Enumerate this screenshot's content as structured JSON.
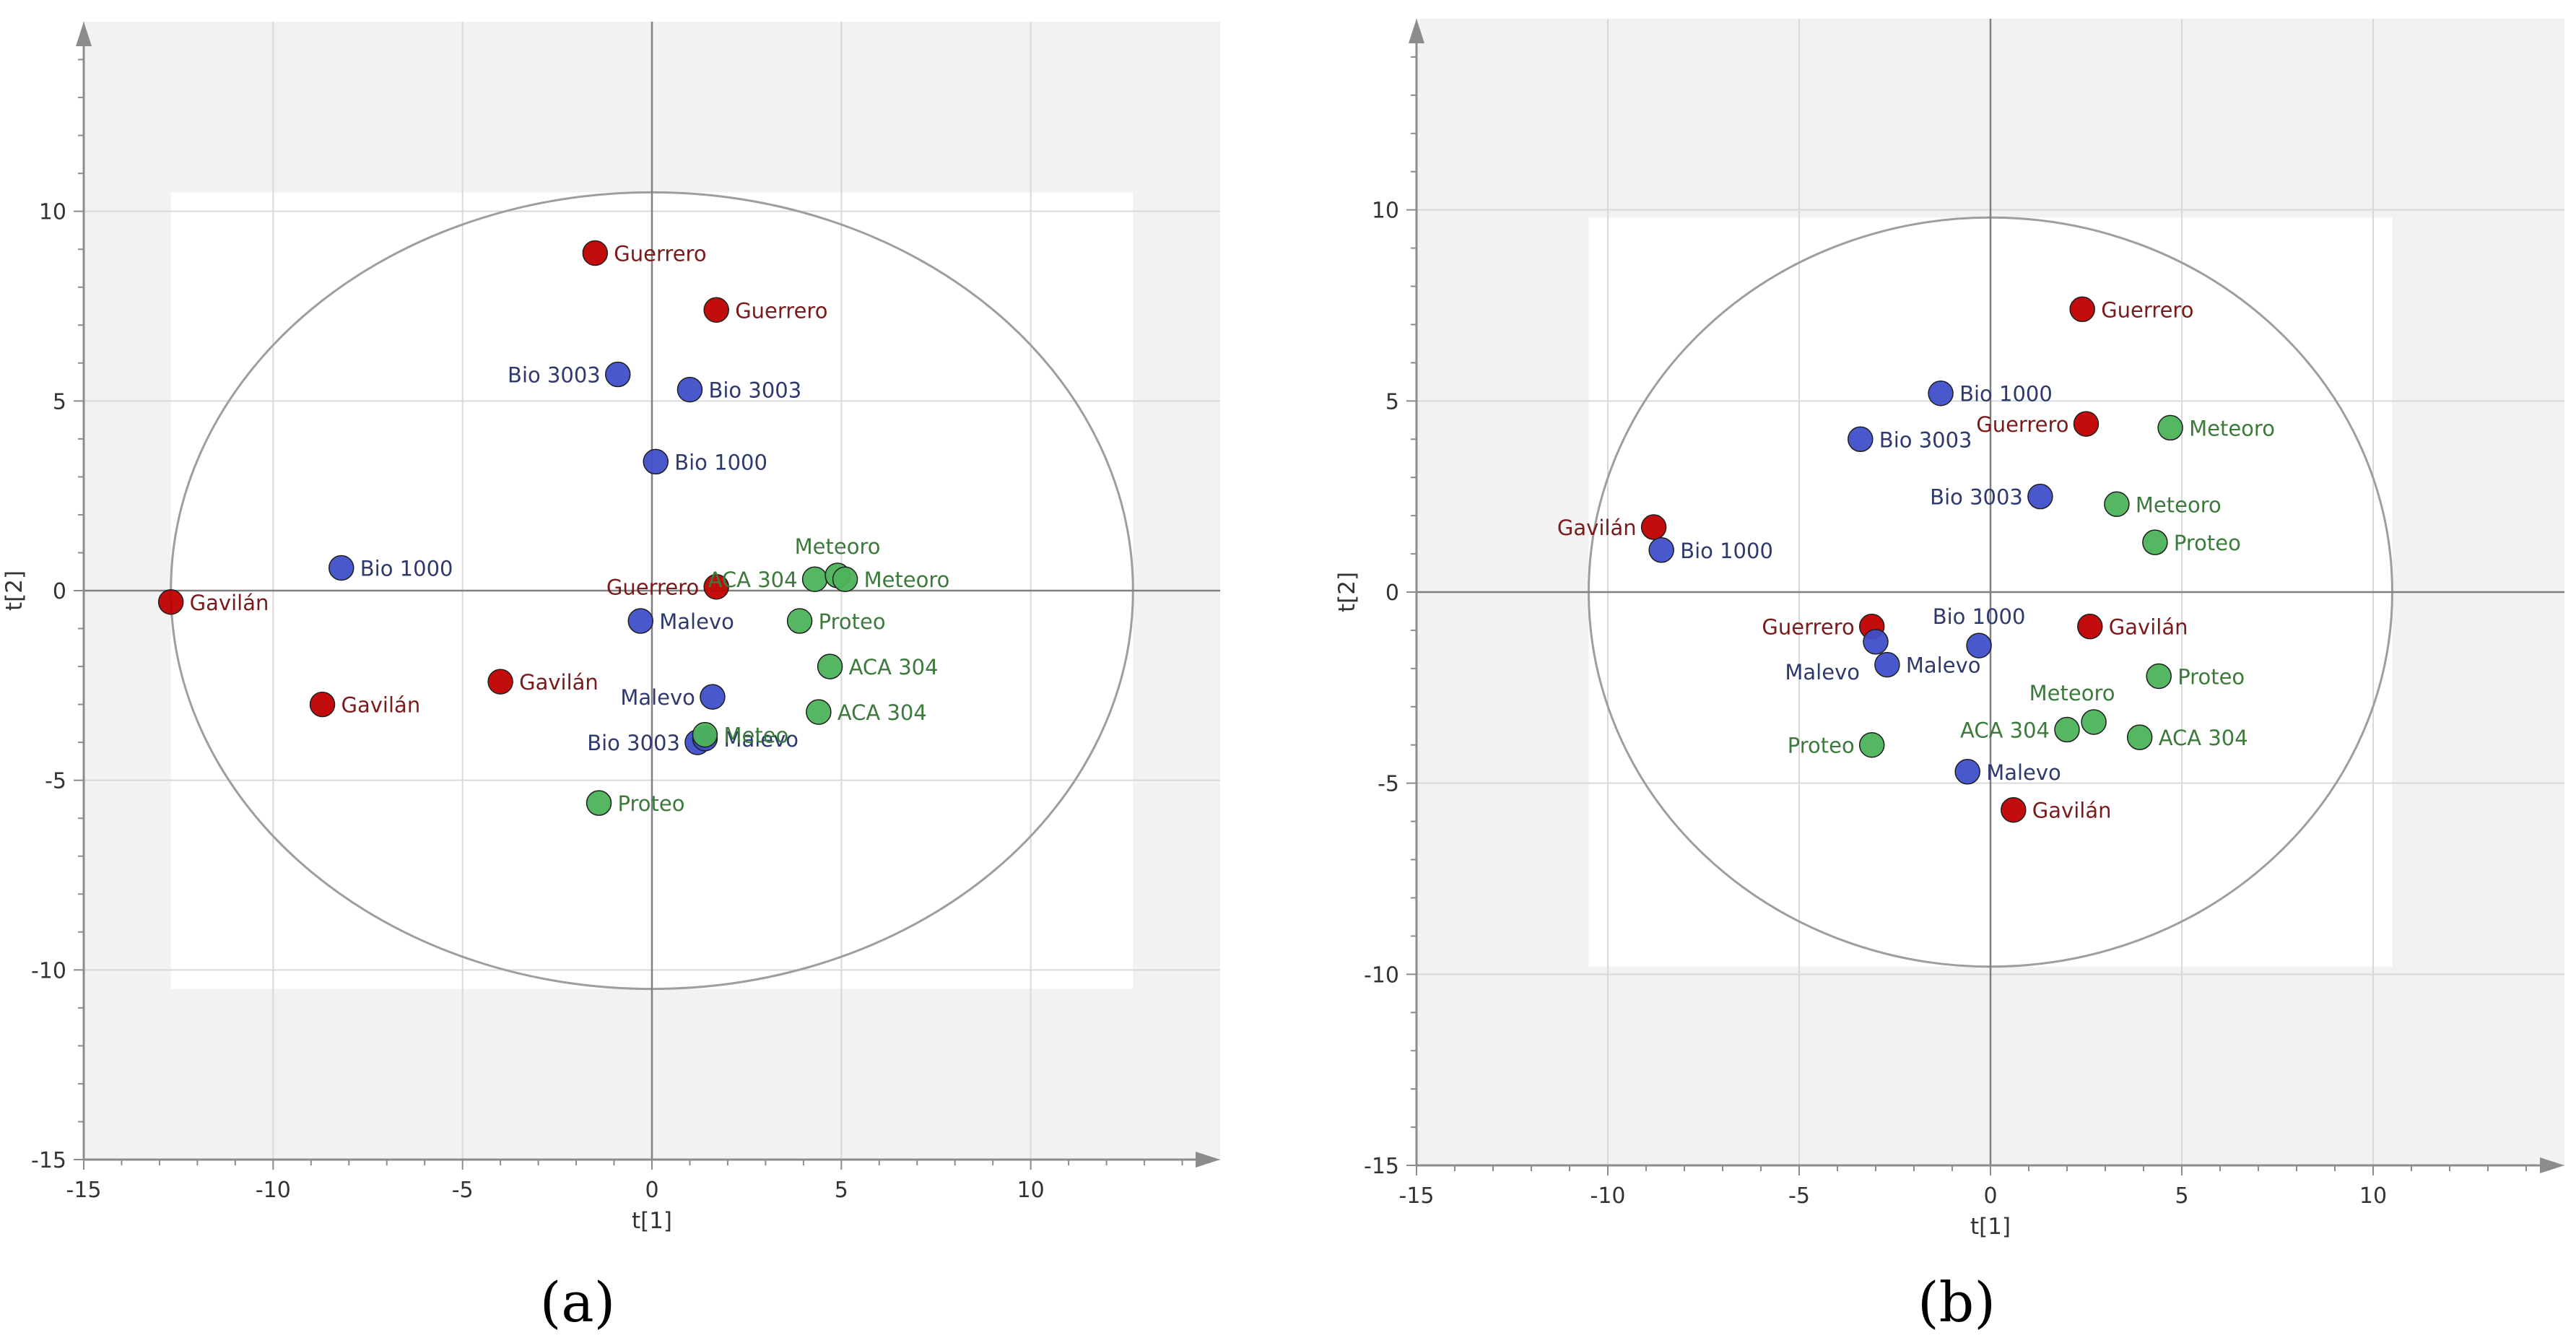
{
  "colors": {
    "red": "#C00000",
    "blue": "#3F4FC9",
    "green": "#4CB35A",
    "red_text": "#7A1A1A",
    "blue_text": "#2E3A6E",
    "green_text": "#3C7A3C"
  },
  "panels": [
    {
      "label": "(a)"
    },
    {
      "label": "(b)"
    }
  ],
  "chart_data": [
    {
      "type": "scatter",
      "panel": "(a)",
      "xlabel": "t[1]",
      "ylabel": "t[2]",
      "xlim": [
        -15,
        15
      ],
      "ylim": [
        -15,
        15
      ],
      "xticks": [
        -15,
        -10,
        -5,
        0,
        5,
        10
      ],
      "yticks": [
        -15,
        -10,
        -5,
        0,
        5,
        10
      ],
      "ellipse": {
        "rx": 12.7,
        "ry": 10.5
      },
      "points": [
        {
          "x": -1.5,
          "y": 8.9,
          "label": "Guerrero",
          "color": "red",
          "anchor": "right"
        },
        {
          "x": 1.7,
          "y": 7.4,
          "label": "Guerrero",
          "color": "red",
          "anchor": "right"
        },
        {
          "x": 1.7,
          "y": 0.1,
          "label": "Guerrero",
          "color": "red",
          "anchor": "left"
        },
        {
          "x": -12.7,
          "y": -0.3,
          "label": "Gavilán",
          "color": "red",
          "anchor": "right"
        },
        {
          "x": -8.7,
          "y": -3.0,
          "label": "Gavilán",
          "color": "red",
          "anchor": "right"
        },
        {
          "x": -4.0,
          "y": -2.4,
          "label": "Gavilán",
          "color": "red",
          "anchor": "right"
        },
        {
          "x": -0.9,
          "y": 5.7,
          "label": "Bio 3003",
          "color": "blue",
          "anchor": "left"
        },
        {
          "x": 1.0,
          "y": 5.3,
          "label": "Bio 3003",
          "color": "blue",
          "anchor": "right"
        },
        {
          "x": 0.1,
          "y": 3.4,
          "label": "Bio 1000",
          "color": "blue",
          "anchor": "right"
        },
        {
          "x": -8.2,
          "y": 0.6,
          "label": "Bio 1000",
          "color": "blue",
          "anchor": "right"
        },
        {
          "x": -0.3,
          "y": -0.8,
          "label": "Malevo",
          "color": "blue",
          "anchor": "right"
        },
        {
          "x": 1.6,
          "y": -2.8,
          "label": "Malevo",
          "color": "blue",
          "anchor": "left"
        },
        {
          "x": 1.2,
          "y": -4.0,
          "label": "Bio 3003",
          "color": "blue",
          "anchor": "left"
        },
        {
          "x": 1.4,
          "y": -3.9,
          "label": "Malevo",
          "color": "blue",
          "anchor": "right"
        },
        {
          "x": 4.3,
          "y": 0.3,
          "label": "ACA 304",
          "color": "green",
          "anchor": "left"
        },
        {
          "x": 4.9,
          "y": 0.4,
          "label": "Meteoro",
          "color": "green",
          "anchor": "above"
        },
        {
          "x": 5.1,
          "y": 0.3,
          "label": "Meteoro",
          "color": "green",
          "anchor": "right"
        },
        {
          "x": 3.9,
          "y": -0.8,
          "label": "Proteo",
          "color": "green",
          "anchor": "right"
        },
        {
          "x": 4.7,
          "y": -2.0,
          "label": "ACA 304",
          "color": "green",
          "anchor": "right"
        },
        {
          "x": 4.4,
          "y": -3.2,
          "label": "ACA 304",
          "color": "green",
          "anchor": "right"
        },
        {
          "x": 1.4,
          "y": -3.8,
          "label": "Meteo",
          "color": "green",
          "anchor": "right"
        },
        {
          "x": -1.4,
          "y": -5.6,
          "label": "Proteo",
          "color": "green",
          "anchor": "right"
        }
      ]
    },
    {
      "type": "scatter",
      "panel": "(b)",
      "xlabel": "t[1]",
      "ylabel": "t[2]",
      "xlim": [
        -15,
        15
      ],
      "ylim": [
        -15,
        15
      ],
      "xticks": [
        -15,
        -10,
        -5,
        0,
        5,
        10
      ],
      "yticks": [
        -15,
        -10,
        -5,
        0,
        5,
        10
      ],
      "ellipse": {
        "rx": 10.5,
        "ry": 9.8
      },
      "points": [
        {
          "x": 2.4,
          "y": 7.4,
          "label": "Guerrero",
          "color": "red",
          "anchor": "right"
        },
        {
          "x": 2.5,
          "y": 4.4,
          "label": "Guerrero",
          "color": "red",
          "anchor": "left"
        },
        {
          "x": -8.8,
          "y": 1.7,
          "label": "Gavilán",
          "color": "red",
          "anchor": "left"
        },
        {
          "x": -3.1,
          "y": -0.9,
          "label": "Guerrero",
          "color": "red",
          "anchor": "left"
        },
        {
          "x": 2.6,
          "y": -0.9,
          "label": "Gavilán",
          "color": "red",
          "anchor": "right"
        },
        {
          "x": 0.6,
          "y": -5.7,
          "label": "Gavilán",
          "color": "red",
          "anchor": "right"
        },
        {
          "x": -1.3,
          "y": 5.2,
          "label": "Bio 1000",
          "color": "blue",
          "anchor": "right"
        },
        {
          "x": -3.4,
          "y": 4.0,
          "label": "Bio 3003",
          "color": "blue",
          "anchor": "right"
        },
        {
          "x": 1.3,
          "y": 2.5,
          "label": "Bio 3003",
          "color": "blue",
          "anchor": "left"
        },
        {
          "x": -8.6,
          "y": 1.1,
          "label": "Bio 1000",
          "color": "blue",
          "anchor": "right"
        },
        {
          "x": -0.3,
          "y": -1.4,
          "label": "Bio 1000",
          "color": "blue",
          "anchor": "above"
        },
        {
          "x": -3.0,
          "y": -1.3,
          "label": "Malevo",
          "color": "blue",
          "anchor": "belowleft"
        },
        {
          "x": -2.7,
          "y": -1.9,
          "label": "Malevo",
          "color": "blue",
          "anchor": "right"
        },
        {
          "x": -0.6,
          "y": -4.7,
          "label": "Malevo",
          "color": "blue",
          "anchor": "right"
        },
        {
          "x": 4.7,
          "y": 4.3,
          "label": "Meteoro",
          "color": "green",
          "anchor": "right"
        },
        {
          "x": 3.3,
          "y": 2.3,
          "label": "Meteoro",
          "color": "green",
          "anchor": "right"
        },
        {
          "x": 4.3,
          "y": 1.3,
          "label": "Proteo",
          "color": "green",
          "anchor": "right"
        },
        {
          "x": 4.4,
          "y": -2.2,
          "label": "Proteo",
          "color": "green",
          "anchor": "right"
        },
        {
          "x": 2.7,
          "y": -3.4,
          "label": "Meteoro",
          "color": "green",
          "anchor": "aboveleft"
        },
        {
          "x": 2.0,
          "y": -3.6,
          "label": "ACA 304",
          "color": "green",
          "anchor": "left"
        },
        {
          "x": 3.9,
          "y": -3.8,
          "label": "ACA 304",
          "color": "green",
          "anchor": "right"
        },
        {
          "x": -3.1,
          "y": -4.0,
          "label": "Proteo",
          "color": "green",
          "anchor": "left"
        }
      ]
    }
  ]
}
